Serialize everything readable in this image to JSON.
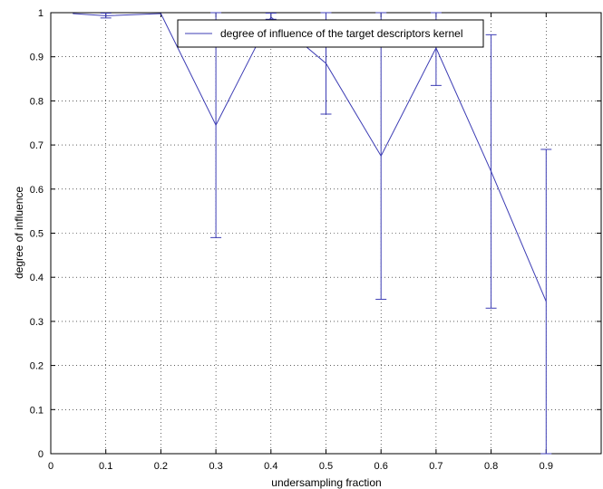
{
  "chart_data": {
    "type": "line",
    "title": "",
    "xlabel": "undersampling fraction",
    "ylabel": "degree of influence",
    "xlim": [
      0,
      1
    ],
    "ylim": [
      0,
      1
    ],
    "grid": true,
    "legend_position": "top",
    "x_ticks": [
      "0",
      "0.1",
      "0.2",
      "0.3",
      "0.4",
      "0.5",
      "0.6",
      "0.7",
      "0.8",
      "0.9"
    ],
    "y_ticks": [
      "0",
      "0.1",
      "0.2",
      "0.3",
      "0.4",
      "0.5",
      "0.6",
      "0.7",
      "0.8",
      "0.9",
      "1"
    ],
    "series": [
      {
        "name": "degree of influence of the target descriptors kernel",
        "color": "#3c3cb4",
        "x": [
          0.04,
          0.1,
          0.2,
          0.3,
          0.4,
          0.5,
          0.6,
          0.7,
          0.8,
          0.9
        ],
        "y": [
          0.998,
          0.993,
          0.998,
          0.745,
          0.99,
          0.885,
          0.675,
          0.92,
          0.64,
          0.345
        ],
        "error_low": [
          null,
          0.988,
          null,
          0.49,
          0.985,
          0.77,
          0.35,
          0.835,
          0.33,
          0.0
        ],
        "error_high": [
          null,
          0.999,
          null,
          1.0,
          0.999,
          1.0,
          1.0,
          1.0,
          0.95,
          0.69
        ]
      }
    ]
  }
}
